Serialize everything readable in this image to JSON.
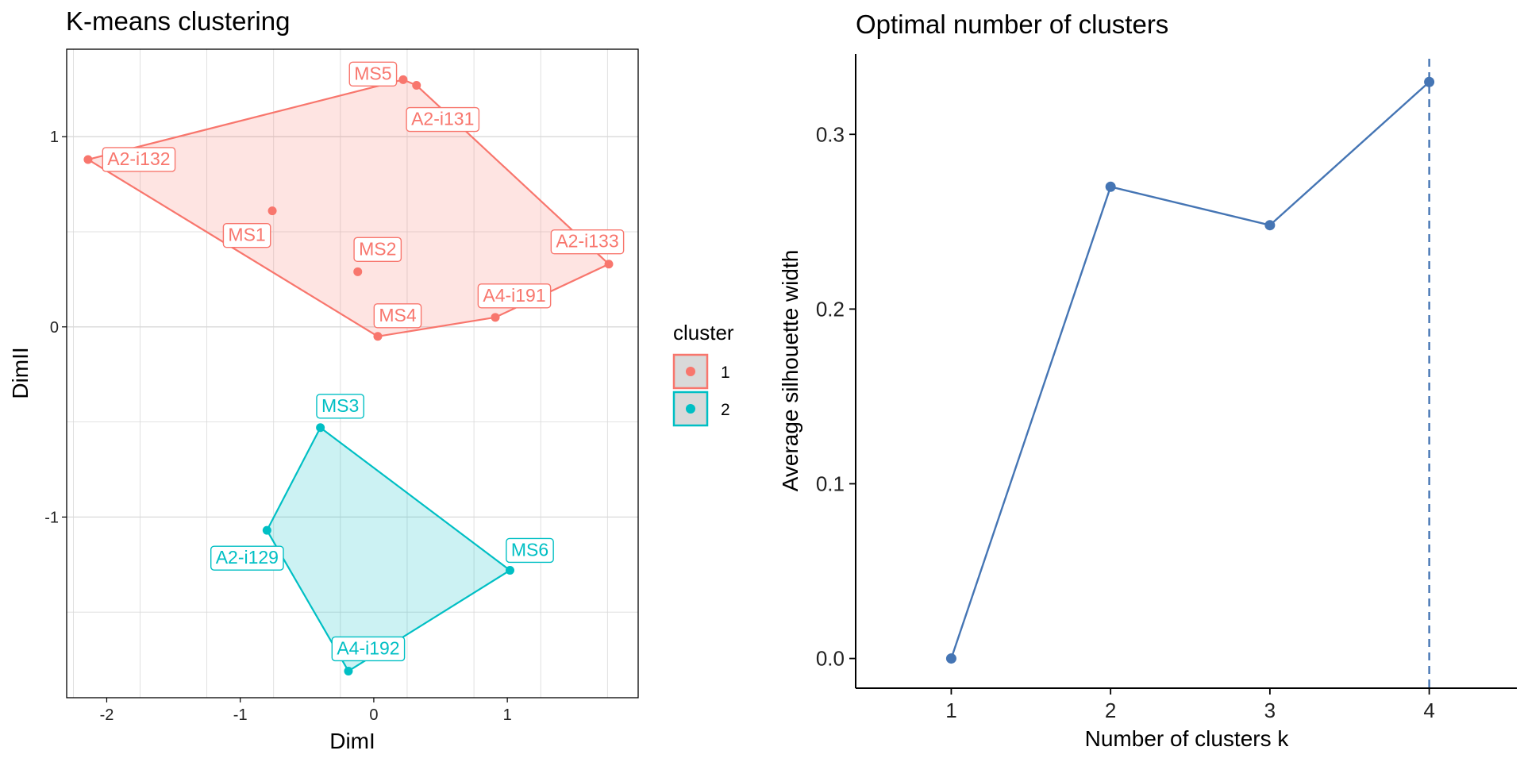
{
  "colors": {
    "cluster1": "#F8766D",
    "cluster2": "#00BFC4",
    "line": "#4575B4",
    "grid": "#D9D9D9"
  },
  "legend": {
    "title": "cluster",
    "items": [
      "1",
      "2"
    ]
  },
  "chart_data": [
    {
      "type": "scatter",
      "title": "K-means clustering",
      "xlabel": "DimI",
      "ylabel": "DimII",
      "xlim": [
        -2.3,
        1.98
      ],
      "ylim": [
        -1.95,
        1.46
      ],
      "xticks": [
        -2,
        -1,
        0,
        1
      ],
      "yticks": [
        1,
        0,
        -1
      ],
      "grid": true,
      "legend_position": "right",
      "points": [
        {
          "label": "MS5",
          "x": 0.22,
          "y": 1.3,
          "cluster": 1
        },
        {
          "label": "A2-i131",
          "x": 0.32,
          "y": 1.27,
          "cluster": 1
        },
        {
          "label": "A2-i132",
          "x": -2.14,
          "y": 0.88,
          "cluster": 1
        },
        {
          "label": "MS1",
          "x": -0.76,
          "y": 0.61,
          "cluster": 1
        },
        {
          "label": "MS2",
          "x": -0.12,
          "y": 0.29,
          "cluster": 1
        },
        {
          "label": "A2-i133",
          "x": 1.76,
          "y": 0.33,
          "cluster": 1
        },
        {
          "label": "A4-i191",
          "x": 0.91,
          "y": 0.05,
          "cluster": 1
        },
        {
          "label": "MS4",
          "x": 0.03,
          "y": -0.05,
          "cluster": 1
        },
        {
          "label": "MS3",
          "x": -0.4,
          "y": -0.53,
          "cluster": 2
        },
        {
          "label": "A2-i129",
          "x": -0.8,
          "y": -1.07,
          "cluster": 2
        },
        {
          "label": "MS6",
          "x": 1.02,
          "y": -1.28,
          "cluster": 2
        },
        {
          "label": "A4-i192",
          "x": -0.19,
          "y": -1.81,
          "cluster": 2
        }
      ]
    },
    {
      "type": "line",
      "title": "Optimal number of clusters",
      "xlabel": "Number of clusters k",
      "ylabel": "Average silhouette width",
      "x": [
        1,
        2,
        3,
        4
      ],
      "values": [
        0.0,
        0.27,
        0.248,
        0.33
      ],
      "optimal_k": 4,
      "xlim": [
        0.4,
        4.55
      ],
      "ylim": [
        -0.017,
        0.346
      ],
      "yticks": [
        0.0,
        0.1,
        0.2,
        0.3
      ],
      "grid": false
    }
  ]
}
